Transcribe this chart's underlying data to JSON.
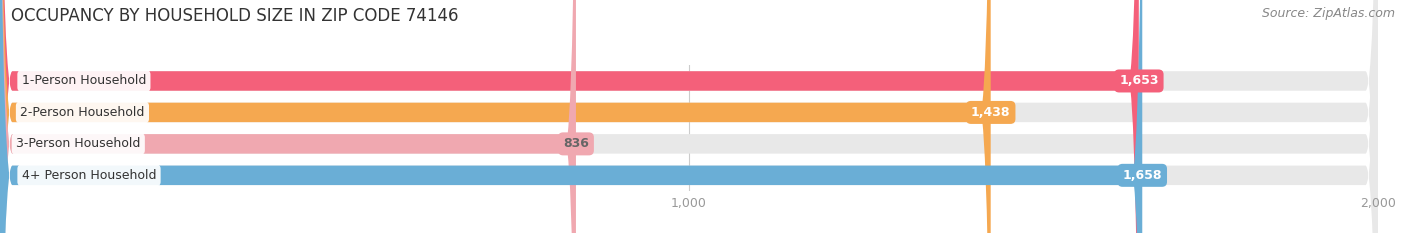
{
  "title": "OCCUPANCY BY HOUSEHOLD SIZE IN ZIP CODE 74146",
  "source": "Source: ZipAtlas.com",
  "categories": [
    "1-Person Household",
    "2-Person Household",
    "3-Person Household",
    "4+ Person Household"
  ],
  "values": [
    1653,
    1438,
    836,
    1658
  ],
  "bar_colors": [
    "#f4607a",
    "#f5a850",
    "#f0a8b0",
    "#6aaed6"
  ],
  "value_label_colors": [
    "white",
    "white",
    "#666666",
    "white"
  ],
  "xlim": [
    0,
    2000
  ],
  "xticks": [
    0,
    1000,
    2000
  ],
  "background_color": "#ffffff",
  "bar_bg_color": "#e8e8e8",
  "title_fontsize": 12,
  "source_fontsize": 9,
  "label_fontsize": 9,
  "value_fontsize": 9,
  "tick_fontsize": 9
}
